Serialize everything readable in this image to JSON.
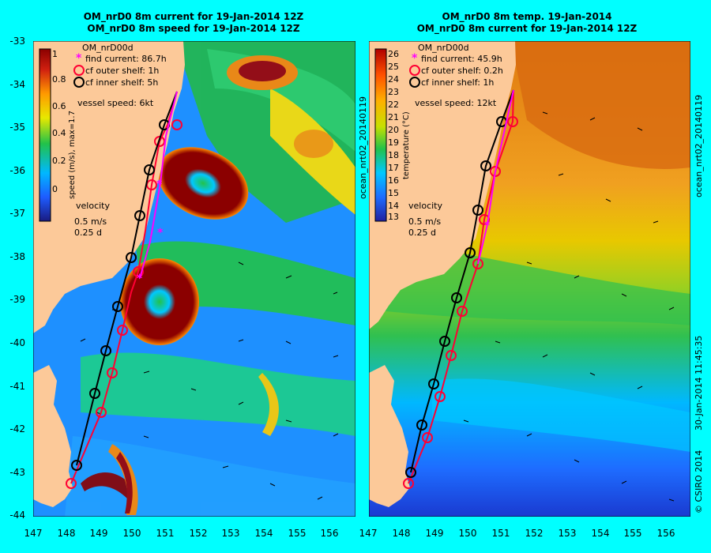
{
  "panel_left": {
    "title_line1": "OM_nrD0 8m current for 19-Jan-2014 12Z",
    "title_line2": "OM_nrD0 8m speed for 19-Jan-2014 12Z",
    "colorbar_label": "speed (m/s), max=1.7",
    "colorbar_ticks": [
      "1",
      "0.8",
      "0.6",
      "0.4",
      "0.2",
      "0"
    ],
    "legend_title": "OM_nrD00d",
    "legend_find": "find current: 86.7h",
    "legend_outer": "cf outer shelf: 1h",
    "legend_inner": "cf inner shelf: 5h",
    "vessel_speed": "vessel speed: 6kt",
    "velocity_label": "velocity",
    "velocity_scale": "0.5 m/s",
    "velocity_time": "0.25 d",
    "side_label": "ocean_nrt02_20140119"
  },
  "panel_right": {
    "title_line1": "OM_nrD0 8m temp. 19-Jan-2014",
    "title_line2": "OM_nrD0 8m current for 19-Jan-2014 12Z",
    "colorbar_label": "temperature (°C)",
    "colorbar_ticks": [
      "26",
      "25",
      "24",
      "23",
      "22",
      "21",
      "20",
      "19",
      "18",
      "17",
      "16",
      "15",
      "14",
      "13"
    ],
    "legend_title": "OM_nrD00d",
    "legend_find": "find current: 45.9h",
    "legend_outer": "cf outer shelf: 0.2h",
    "legend_inner": "cf inner shelf: 1h",
    "vessel_speed": "vessel speed: 12kt",
    "velocity_label": "velocity",
    "velocity_scale": "0.5 m/s",
    "velocity_time": "0.25 d",
    "side_label": "ocean_nrt02_20140119",
    "side_label2": "30-Jan-2014 11:45:35",
    "copyright": "© CSIRO 2014"
  },
  "axes": {
    "lat_ticks": [
      "-33",
      "-34",
      "-35",
      "-36",
      "-37",
      "-38",
      "-39",
      "-40",
      "-41",
      "-42",
      "-43",
      "-44"
    ],
    "lon_ticks": [
      "147",
      "148",
      "149",
      "150",
      "151",
      "152",
      "153",
      "154",
      "155",
      "156"
    ]
  },
  "colors": {
    "land": "#fcc999",
    "speed_low": "#1e5cff",
    "speed_mid": "#22c24a",
    "speed_high": "#8b0000",
    "find_marker": "#ff00ff",
    "outer_track": "#ff0033",
    "inner_track": "#000000"
  }
}
